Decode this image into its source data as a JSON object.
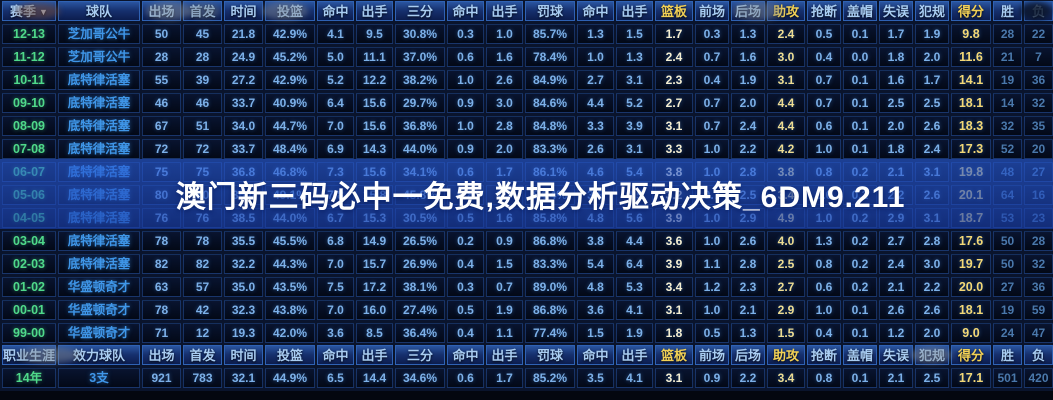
{
  "banner": {
    "text": "澳门新三码必中一免费,数据分析驱动决策_6DM9.211"
  },
  "colors": {
    "accent_yellow": "#f2d155",
    "season_green": "#4fd98a",
    "team_blue": "#3f96e8",
    "value_blue": "#7cb0e8",
    "overlay_blue": "#2b5fd0",
    "banner_text": "#ffffff"
  },
  "season_table": {
    "sort_arrow": "▼",
    "columns": [
      "赛季",
      "球队",
      "出场",
      "首发",
      "时间",
      "投篮",
      "命中",
      "出手",
      "三分",
      "命中",
      "出手",
      "罚球",
      "命中",
      "出手",
      "篮板",
      "前场",
      "后场",
      "助攻",
      "抢断",
      "盖帽",
      "失误",
      "犯规",
      "得分",
      "胜",
      "负"
    ],
    "rows": [
      {
        "season": "12-13",
        "team": "芝加哥公牛",
        "values": [
          "50",
          "45",
          "21.8",
          "42.9%",
          "4.1",
          "9.5",
          "30.8%",
          "0.3",
          "1.0",
          "85.7%",
          "1.3",
          "1.5",
          "1.7",
          "0.3",
          "1.3",
          "2.4",
          "0.5",
          "0.1",
          "1.7",
          "1.9",
          "9.8",
          "28",
          "22"
        ]
      },
      {
        "season": "11-12",
        "team": "芝加哥公牛",
        "values": [
          "28",
          "28",
          "24.9",
          "45.2%",
          "5.0",
          "11.1",
          "37.0%",
          "0.6",
          "1.6",
          "78.4%",
          "1.0",
          "1.3",
          "2.4",
          "0.7",
          "1.6",
          "3.0",
          "0.4",
          "0.0",
          "1.8",
          "2.0",
          "11.6",
          "21",
          "7"
        ]
      },
      {
        "season": "10-11",
        "team": "底特律活塞",
        "values": [
          "55",
          "39",
          "27.2",
          "42.9%",
          "5.2",
          "12.2",
          "38.2%",
          "1.0",
          "2.6",
          "84.9%",
          "2.7",
          "3.1",
          "2.3",
          "0.4",
          "1.9",
          "3.1",
          "0.7",
          "0.1",
          "1.6",
          "1.7",
          "14.1",
          "19",
          "36"
        ]
      },
      {
        "season": "09-10",
        "team": "底特律活塞",
        "values": [
          "46",
          "46",
          "33.7",
          "40.9%",
          "6.4",
          "15.6",
          "29.7%",
          "0.9",
          "3.0",
          "84.6%",
          "4.4",
          "5.2",
          "2.7",
          "0.7",
          "2.0",
          "4.4",
          "0.7",
          "0.1",
          "2.5",
          "2.5",
          "18.1",
          "14",
          "32"
        ]
      },
      {
        "season": "08-09",
        "team": "底特律活塞",
        "values": [
          "67",
          "51",
          "34.0",
          "44.7%",
          "7.0",
          "15.6",
          "36.8%",
          "1.0",
          "2.8",
          "84.8%",
          "3.3",
          "3.9",
          "3.1",
          "0.7",
          "2.4",
          "4.4",
          "0.6",
          "0.1",
          "2.0",
          "2.6",
          "18.3",
          "32",
          "35"
        ]
      },
      {
        "season": "07-08",
        "team": "底特律活塞",
        "values": [
          "72",
          "72",
          "33.7",
          "48.4%",
          "6.9",
          "14.3",
          "44.0%",
          "0.9",
          "2.0",
          "83.3%",
          "2.6",
          "3.1",
          "3.3",
          "1.0",
          "2.2",
          "4.2",
          "1.0",
          "0.1",
          "1.8",
          "2.4",
          "17.3",
          "52",
          "20"
        ]
      },
      {
        "season": "06-07",
        "team": "底特律活塞",
        "values": [
          "75",
          "75",
          "36.8",
          "46.8%",
          "7.3",
          "15.6",
          "34.1%",
          "0.6",
          "1.7",
          "86.1%",
          "4.6",
          "5.4",
          "3.8",
          "1.0",
          "2.8",
          "3.8",
          "0.8",
          "0.2",
          "2.1",
          "3.1",
          "19.8",
          "48",
          "27"
        ]
      },
      {
        "season": "05-06",
        "team": "底特律活塞",
        "values": [
          "80",
          "80",
          "35.4",
          "49.1%",
          "7.8",
          "15.8",
          "45.8%",
          "0.8",
          "1.7",
          "84.4%",
          "3.8",
          "4.5",
          "3.2",
          "0.7",
          "2.5",
          "3.4",
          "0.6",
          "0.2",
          "2.2",
          "2.6",
          "20.1",
          "64",
          "16"
        ]
      },
      {
        "season": "04-05",
        "team": "底特律活塞",
        "values": [
          "76",
          "76",
          "38.5",
          "44.0%",
          "6.7",
          "15.3",
          "30.5%",
          "0.5",
          "1.6",
          "85.8%",
          "4.8",
          "5.6",
          "3.9",
          "1.0",
          "2.9",
          "4.9",
          "1.0",
          "0.2",
          "2.9",
          "3.1",
          "18.7",
          "53",
          "23"
        ]
      },
      {
        "season": "03-04",
        "team": "底特律活塞",
        "values": [
          "78",
          "78",
          "35.5",
          "45.5%",
          "6.8",
          "14.9",
          "26.5%",
          "0.2",
          "0.9",
          "86.8%",
          "3.8",
          "4.4",
          "3.6",
          "1.0",
          "2.6",
          "4.0",
          "1.3",
          "0.2",
          "2.7",
          "2.8",
          "17.6",
          "50",
          "28"
        ]
      },
      {
        "season": "02-03",
        "team": "底特律活塞",
        "values": [
          "82",
          "82",
          "32.2",
          "44.3%",
          "7.0",
          "15.7",
          "26.9%",
          "0.4",
          "1.5",
          "83.3%",
          "5.4",
          "6.4",
          "3.9",
          "1.1",
          "2.8",
          "2.5",
          "0.8",
          "0.2",
          "2.4",
          "3.0",
          "19.7",
          "50",
          "32"
        ]
      },
      {
        "season": "01-02",
        "team": "华盛顿奇才",
        "values": [
          "63",
          "57",
          "35.0",
          "43.5%",
          "7.5",
          "17.2",
          "38.1%",
          "0.3",
          "0.7",
          "89.0%",
          "4.8",
          "5.3",
          "3.4",
          "1.2",
          "2.3",
          "2.7",
          "0.6",
          "0.2",
          "2.1",
          "2.2",
          "20.0",
          "27",
          "36"
        ]
      },
      {
        "season": "00-01",
        "team": "华盛顿奇才",
        "values": [
          "78",
          "42",
          "32.3",
          "43.8%",
          "7.0",
          "16.0",
          "27.4%",
          "0.5",
          "1.9",
          "86.8%",
          "3.6",
          "4.1",
          "3.1",
          "1.0",
          "2.1",
          "2.9",
          "1.0",
          "0.1",
          "2.6",
          "2.6",
          "18.1",
          "19",
          "59"
        ]
      },
      {
        "season": "99-00",
        "team": "华盛顿奇才",
        "values": [
          "71",
          "12",
          "19.3",
          "42.0%",
          "3.6",
          "8.5",
          "36.4%",
          "0.4",
          "1.1",
          "77.4%",
          "1.5",
          "1.9",
          "1.8",
          "0.5",
          "1.3",
          "1.5",
          "0.4",
          "0.1",
          "1.2",
          "2.0",
          "9.0",
          "24",
          "47"
        ]
      }
    ]
  },
  "career_table": {
    "columns": [
      "职业生涯",
      "效力球队",
      "出场",
      "首发",
      "时间",
      "投篮",
      "命中",
      "出手",
      "三分",
      "命中",
      "出手",
      "罚球",
      "命中",
      "出手",
      "篮板",
      "前场",
      "后场",
      "助攻",
      "抢断",
      "盖帽",
      "失误",
      "犯规",
      "得分",
      "胜",
      "负"
    ],
    "row": {
      "career": "14年",
      "teams": "3支",
      "values": [
        "921",
        "783",
        "32.1",
        "44.9%",
        "6.5",
        "14.4",
        "34.6%",
        "0.6",
        "1.7",
        "85.2%",
        "3.5",
        "4.1",
        "3.1",
        "0.9",
        "2.2",
        "3.4",
        "0.8",
        "0.1",
        "2.1",
        "2.5",
        "17.1",
        "501",
        "420"
      ]
    }
  }
}
